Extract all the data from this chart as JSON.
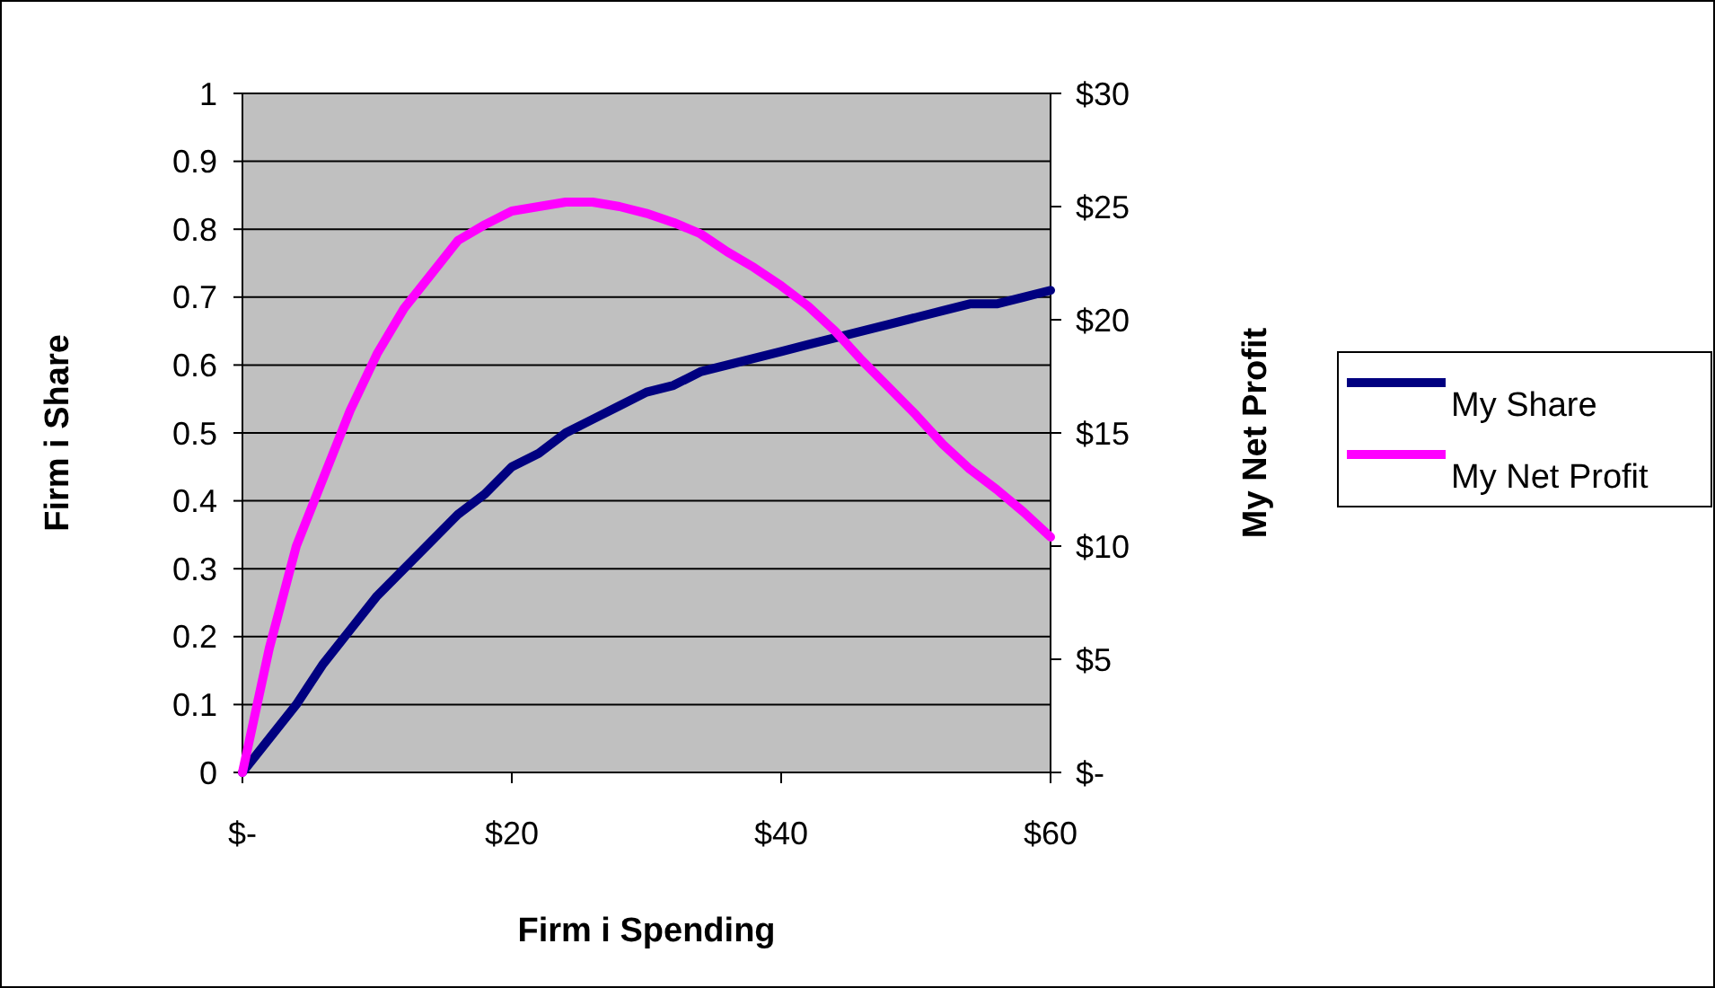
{
  "chart_data": {
    "type": "line",
    "xlabel": "Firm i Spending",
    "ylabel": "Firm i Share",
    "y2label": "My Net Profit",
    "x": [
      0,
      2,
      4,
      6,
      8,
      10,
      12,
      14,
      16,
      18,
      20,
      22,
      24,
      26,
      28,
      30,
      32,
      34,
      36,
      38,
      40,
      42,
      44,
      46,
      48,
      50,
      52,
      54,
      56,
      58,
      60
    ],
    "series": [
      {
        "name": "My Share",
        "color": "#000080",
        "values": [
          0,
          0.05,
          0.1,
          0.16,
          0.21,
          0.26,
          0.3,
          0.34,
          0.38,
          0.41,
          0.45,
          0.47,
          0.5,
          0.52,
          0.54,
          0.56,
          0.57,
          0.59,
          0.6,
          0.61,
          0.62,
          0.63,
          0.64,
          0.65,
          0.66,
          0.67,
          0.68,
          0.69,
          0.69,
          0.7,
          0.71
        ]
      },
      {
        "name": "My Net Profit",
        "color": "#ff00ff",
        "axis": "y2",
        "values": [
          0,
          5.5,
          10,
          13,
          16,
          18.5,
          20.5,
          22,
          23.5,
          24.2,
          24.8,
          25,
          25.2,
          25.2,
          25,
          24.7,
          24.3,
          23.8,
          23,
          22.3,
          21.5,
          20.6,
          19.5,
          18.2,
          17,
          15.8,
          14.5,
          13.4,
          12.5,
          11.5,
          10.4
        ]
      }
    ],
    "xlim": [
      0,
      60
    ],
    "xticks": [
      {
        "value": 0,
        "label": "$-"
      },
      {
        "value": 20,
        "label": "$20"
      },
      {
        "value": 40,
        "label": "$40"
      },
      {
        "value": 60,
        "label": "$60"
      }
    ],
    "ylim": [
      0,
      1
    ],
    "yticks": [
      0,
      0.1,
      0.2,
      0.3,
      0.4,
      0.5,
      0.6,
      0.7,
      0.8,
      0.9,
      1
    ],
    "y2lim": [
      0,
      30
    ],
    "y2ticks": [
      {
        "value": 0,
        "label": "$-"
      },
      {
        "value": 5,
        "label": "$5"
      },
      {
        "value": 10,
        "label": "$10"
      },
      {
        "value": 15,
        "label": "$15"
      },
      {
        "value": 20,
        "label": "$20"
      },
      {
        "value": 25,
        "label": "$25"
      },
      {
        "value": 30,
        "label": "$30"
      }
    ],
    "grid": "y",
    "legend": "right",
    "marker": "none",
    "line_style": "solid"
  }
}
